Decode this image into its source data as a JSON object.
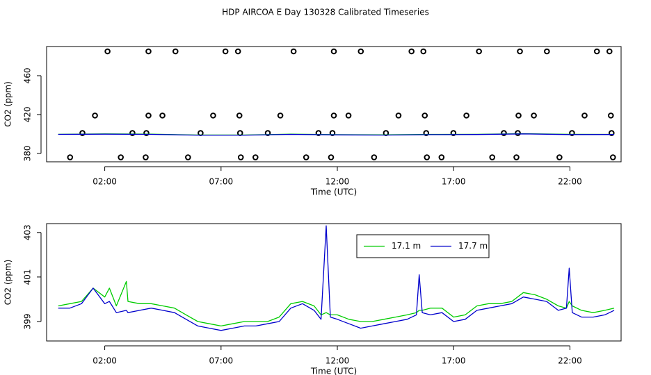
{
  "title": "HDP AIRCOA E  Day 130328  Calibrated Timeseries",
  "chart_data": [
    {
      "type": "scatter",
      "xlabel": "Time (UTC)",
      "ylabel": "CO2 (ppm)",
      "xlim": [
        -0.5,
        24.2
      ],
      "ylim": [
        371.4,
        490
      ],
      "xticks": [
        {
          "value": 2,
          "label": "02:00"
        },
        {
          "value": 7,
          "label": "07:00"
        },
        {
          "value": 12,
          "label": "12:00"
        },
        {
          "value": 17,
          "label": "17:00"
        },
        {
          "value": 22,
          "label": "22:00"
        }
      ],
      "yticks": [
        380,
        420,
        460
      ],
      "series": [
        {
          "style": "points",
          "color": "#000000",
          "x": [
            2.12,
            3.88,
            5.04,
            7.19,
            7.73,
            10.12,
            11.85,
            13.01,
            15.19,
            15.7,
            18.09,
            19.85,
            21.01,
            23.16,
            23.7,
            1.58,
            3.88,
            4.48,
            6.66,
            7.79,
            9.55,
            11.85,
            12.48,
            14.63,
            15.76,
            17.55,
            19.79,
            20.45,
            22.63,
            23.76,
            1.04,
            3.19,
            3.79,
            6.12,
            7.82,
            9.01,
            11.19,
            11.79,
            14.09,
            15.82,
            16.99,
            19.16,
            19.76,
            22.09,
            23.79,
            0.51,
            2.69,
            3.76,
            5.58,
            7.85,
            8.48,
            10.66,
            11.73,
            13.58,
            15.85,
            16.48,
            18.66,
            19.7,
            21.55,
            23.85
          ],
          "values": [
            485,
            485,
            485,
            485,
            485,
            485,
            485,
            485,
            485,
            485,
            485,
            485,
            485,
            485,
            485,
            419,
            419,
            419,
            419,
            419,
            419,
            419,
            419,
            419,
            419,
            419,
            419,
            419,
            419,
            419,
            401,
            401,
            401,
            401,
            401,
            401,
            401,
            401,
            401,
            401,
            401,
            401,
            401,
            401,
            401,
            376,
            376,
            376,
            376,
            376,
            376,
            376,
            376,
            376,
            376,
            376,
            376,
            376,
            376,
            376
          ]
        },
        {
          "style": "line",
          "color": "#00cc00",
          "x": [
            0,
            2,
            4,
            6,
            8,
            10,
            12,
            14,
            16,
            18,
            20,
            22,
            23.9
          ],
          "values": [
            399.7,
            400.1,
            399.8,
            399.0,
            399.0,
            399.8,
            399.3,
            399.1,
            399.6,
            399.7,
            400.3,
            399.7,
            399.6
          ]
        },
        {
          "style": "line",
          "color": "#0000cc",
          "x": [
            0,
            2,
            4,
            6,
            8,
            10,
            12,
            14,
            16,
            18,
            20,
            22,
            23.9
          ],
          "values": [
            399.6,
            399.8,
            399.6,
            398.8,
            398.8,
            399.6,
            399.1,
            398.9,
            399.3,
            399.5,
            400.1,
            399.4,
            399.5
          ]
        }
      ]
    },
    {
      "type": "line",
      "xlabel": "Time (UTC)",
      "ylabel": "CO2 (ppm)",
      "legend": "top",
      "xlim": [
        -0.5,
        24.2
      ],
      "ylim": [
        398.125,
        403.4
      ],
      "xticks": [
        {
          "value": 2,
          "label": "02:00"
        },
        {
          "value": 7,
          "label": "07:00"
        },
        {
          "value": 12,
          "label": "12:00"
        },
        {
          "value": 17,
          "label": "17:00"
        },
        {
          "value": 22,
          "label": "22:00"
        }
      ],
      "yticks": [
        399,
        401,
        403
      ],
      "x": [
        0,
        0.5,
        1,
        1.5,
        2,
        2.2,
        2.5,
        2.93,
        3,
        3.5,
        4,
        4.5,
        5,
        5.5,
        6,
        6.5,
        7,
        7.5,
        8,
        8.5,
        9,
        9.5,
        10,
        10.5,
        11,
        11.3,
        11.52,
        11.7,
        12,
        12.5,
        13,
        13.5,
        14,
        14.5,
        15,
        15.4,
        15.52,
        15.65,
        16,
        16.5,
        17,
        17.5,
        18,
        18.5,
        19,
        19.5,
        20,
        20.5,
        21,
        21.5,
        21.85,
        21.97,
        22.1,
        22.5,
        23,
        23.5,
        23.9
      ],
      "series": [
        {
          "name": "17.1 m",
          "style": "line",
          "color": "#00cc00",
          "values": [
            399.7,
            399.8,
            399.9,
            400.5,
            400.1,
            400.5,
            399.7,
            400.8,
            399.9,
            399.8,
            399.8,
            399.7,
            399.6,
            399.3,
            399.0,
            398.9,
            398.8,
            398.9,
            399.0,
            399.0,
            399.0,
            399.2,
            399.8,
            399.9,
            399.7,
            399.3,
            399.4,
            399.3,
            399.3,
            399.1,
            399.0,
            399.0,
            399.1,
            399.2,
            399.3,
            399.4,
            399.5,
            399.5,
            399.6,
            399.6,
            399.2,
            399.3,
            399.7,
            399.8,
            399.8,
            399.9,
            400.3,
            400.2,
            400.0,
            399.7,
            399.6,
            399.9,
            399.7,
            399.5,
            399.4,
            399.5,
            399.6
          ]
        },
        {
          "name": "17.7 m",
          "style": "line",
          "color": "#0000cc",
          "values": [
            399.6,
            399.6,
            399.8,
            400.5,
            399.8,
            399.9,
            399.4,
            399.5,
            399.4,
            399.5,
            399.6,
            399.5,
            399.4,
            399.1,
            398.8,
            398.7,
            398.6,
            398.7,
            398.8,
            398.8,
            398.9,
            399.0,
            399.6,
            399.8,
            399.5,
            399.1,
            403.3,
            399.2,
            399.1,
            398.9,
            398.7,
            398.8,
            398.9,
            399.0,
            399.1,
            399.3,
            401.1,
            399.4,
            399.3,
            399.4,
            399.0,
            399.1,
            399.5,
            399.6,
            399.7,
            399.8,
            400.1,
            400.0,
            399.9,
            399.5,
            399.6,
            401.4,
            399.4,
            399.2,
            399.2,
            399.3,
            399.5
          ]
        }
      ]
    }
  ]
}
